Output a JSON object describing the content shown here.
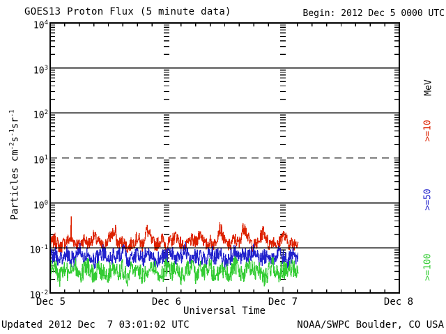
{
  "chart_data": {
    "type": "line",
    "title": "GOES13 Proton Flux (5 minute data)",
    "begin_label": "Begin: 2012 Dec 5 0000 UTC",
    "xlabel": "Universal Time",
    "ylabel_segments": [
      {
        "t": "Particles cm"
      },
      {
        "s": "-2"
      },
      {
        "t": "s"
      },
      {
        "s": "-1"
      },
      {
        "t": "sr"
      },
      {
        "s": "-1"
      }
    ],
    "x_ticks": [
      "Dec 5",
      "Dec 6",
      "Dec 7",
      "Dec 8"
    ],
    "x_total_hours": 72,
    "x_minor_tick_hours": 3,
    "x_day_boundary_hours": [
      24,
      48
    ],
    "y_tick_exponents": [
      4,
      3,
      2,
      1,
      0,
      -1,
      -2
    ],
    "ylim": [
      0.01,
      10000
    ],
    "grid_solid_exponents": [
      3,
      2,
      0,
      -1
    ],
    "grid_dashed_exponents": [
      1
    ],
    "axis_color": "#000000",
    "legend": {
      "heading": "MeV",
      "heading_color": "#000000",
      "entries": [
        {
          "label": ">=10",
          "color": "#dd2200"
        },
        {
          "label": ">=50",
          "color": "#2222cc"
        },
        {
          "label": ">=100",
          "color": "#33cc33"
        }
      ]
    },
    "series": [
      {
        "name": ">=10 MeV",
        "color": "#dd2200",
        "jitter_log": 0.16,
        "end_hour": 51.25,
        "spikes": [
          {
            "hour": 4.3,
            "value": 0.5
          },
          {
            "hour": 13.5,
            "value": 0.33
          },
          {
            "hour": 40.2,
            "value": 0.34
          }
        ],
        "hourly": [
          0.12,
          0.15,
          0.1,
          0.13,
          0.16,
          0.14,
          0.11,
          0.16,
          0.12,
          0.18,
          0.13,
          0.1,
          0.15,
          0.22,
          0.12,
          0.14,
          0.1,
          0.13,
          0.17,
          0.11,
          0.25,
          0.13,
          0.12,
          0.16,
          0.11,
          0.14,
          0.19,
          0.12,
          0.1,
          0.15,
          0.13,
          0.22,
          0.11,
          0.14,
          0.12,
          0.28,
          0.13,
          0.11,
          0.16,
          0.12,
          0.3,
          0.14,
          0.11,
          0.13,
          0.24,
          0.12,
          0.15,
          0.11,
          0.2,
          0.13,
          0.12,
          0.14
        ]
      },
      {
        "name": ">=50 MeV",
        "color": "#2222cc",
        "jitter_log": 0.19,
        "end_hour": 51.25,
        "spikes": [],
        "hourly": [
          0.06,
          0.07,
          0.05,
          0.08,
          0.06,
          0.052,
          0.09,
          0.06,
          0.07,
          0.05,
          0.062,
          0.08,
          0.052,
          0.07,
          0.06,
          0.09,
          0.05,
          0.06,
          0.072,
          0.052,
          0.08,
          0.06,
          0.05,
          0.07,
          0.06,
          0.08,
          0.052,
          0.062,
          0.09,
          0.05,
          0.07,
          0.06,
          0.052,
          0.08,
          0.062,
          0.07,
          0.05,
          0.06,
          0.08,
          0.052,
          0.07,
          0.06,
          0.09,
          0.05,
          0.062,
          0.07,
          0.052,
          0.08,
          0.06,
          0.05,
          0.07,
          0.06
        ]
      },
      {
        "name": ">=100 MeV",
        "color": "#33cc33",
        "jitter_log": 0.22,
        "end_hour": 51.25,
        "spikes": [],
        "hourly": [
          0.03,
          0.038,
          0.022,
          0.034,
          0.028,
          0.042,
          0.024,
          0.03,
          0.038,
          0.024,
          0.034,
          0.028,
          0.024,
          0.042,
          0.03,
          0.034,
          0.022,
          0.038,
          0.028,
          0.024,
          0.034,
          0.042,
          0.028,
          0.024,
          0.038,
          0.03,
          0.034,
          0.024,
          0.028,
          0.042,
          0.024,
          0.034,
          0.028,
          0.038,
          0.022,
          0.03,
          0.034,
          0.024,
          0.042,
          0.028,
          0.024,
          0.038,
          0.03,
          0.034,
          0.022,
          0.028,
          0.042,
          0.024,
          0.034,
          0.028,
          0.038,
          0.03
        ]
      }
    ]
  },
  "footer": {
    "updated": "Updated 2012 Dec  7 03:01:02 UTC",
    "source": "NOAA/SWPC Boulder, CO USA"
  }
}
